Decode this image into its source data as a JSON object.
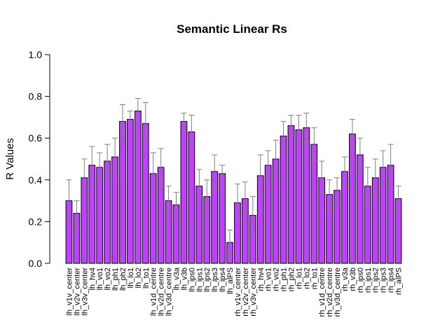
{
  "chart_data": {
    "type": "bar",
    "title": "Semantic Linear Rs",
    "xlabel": "",
    "ylabel": "R Values",
    "ylim": [
      0,
      1
    ],
    "yticks": [
      "0.0",
      "0.2",
      "0.4",
      "0.6",
      "0.8",
      "1.0"
    ],
    "grid": false,
    "bar_color": "#bf40ff",
    "categories": [
      "lh_v1v_center",
      "lh_v2v_center",
      "lh_v3v_center",
      "lh_hv4",
      "lh_vo1",
      "lh_vo2",
      "lh_ph1",
      "lh_ph2",
      "lh_lo1",
      "lh_lo2",
      "lh_to1",
      "lh_v1d_centre",
      "lh_v2d_centre",
      "lh_v3d_centre",
      "lh_v3a",
      "lh_v3b",
      "lh_ips0",
      "lh_ips1",
      "lh_ips2",
      "lh_ips3",
      "lh_ips4",
      "lh_alPS",
      "rh_v1v_center",
      "rh_v2v_center",
      "rh_v3v_center",
      "rh_hv4",
      "rh_vo1",
      "rh_vo2",
      "rh_ph1",
      "rh_ph2",
      "rh_lo1",
      "rh_lo2",
      "rh_to1",
      "rh_v1d_centre",
      "rh_v2d_centre",
      "rh_v3d_centre",
      "rh_v3a",
      "rh_v3b",
      "rh_ips0",
      "rh_ips1",
      "rh_ips2",
      "rh_ips3",
      "rh_ips4",
      "rh_alPS"
    ],
    "values": [
      0.3,
      0.24,
      0.41,
      0.47,
      0.46,
      0.49,
      0.51,
      0.68,
      0.69,
      0.73,
      0.67,
      0.43,
      0.46,
      0.3,
      0.28,
      0.68,
      0.63,
      0.37,
      0.32,
      0.44,
      0.43,
      0.1,
      0.29,
      0.31,
      0.23,
      0.42,
      0.47,
      0.5,
      0.61,
      0.66,
      0.64,
      0.65,
      0.57,
      0.41,
      0.33,
      0.35,
      0.44,
      0.62,
      0.52,
      0.37,
      0.41,
      0.46,
      0.47,
      0.31
    ],
    "error_upper": [
      0.4,
      0.3,
      0.5,
      0.56,
      0.53,
      0.57,
      0.6,
      0.76,
      0.73,
      0.79,
      0.77,
      0.53,
      0.55,
      0.37,
      0.34,
      0.72,
      0.71,
      0.45,
      0.4,
      0.52,
      0.47,
      0.16,
      0.38,
      0.39,
      0.32,
      0.52,
      0.54,
      0.59,
      0.68,
      0.71,
      0.71,
      0.72,
      0.65,
      0.49,
      0.4,
      0.41,
      0.51,
      0.69,
      0.6,
      0.46,
      0.5,
      0.54,
      0.57,
      0.37
    ],
    "error_lower": [
      0.21,
      0.17,
      0.31,
      0.38,
      0.39,
      0.41,
      0.42,
      0.6,
      0.65,
      0.67,
      0.57,
      0.33,
      0.37,
      0.23,
      0.22,
      0.64,
      0.55,
      0.29,
      0.24,
      0.36,
      0.39,
      0.04,
      0.2,
      0.23,
      0.14,
      0.32,
      0.4,
      0.41,
      0.54,
      0.61,
      0.57,
      0.58,
      0.49,
      0.33,
      0.26,
      0.29,
      0.37,
      0.55,
      0.44,
      0.28,
      0.32,
      0.38,
      0.37,
      0.25
    ]
  }
}
